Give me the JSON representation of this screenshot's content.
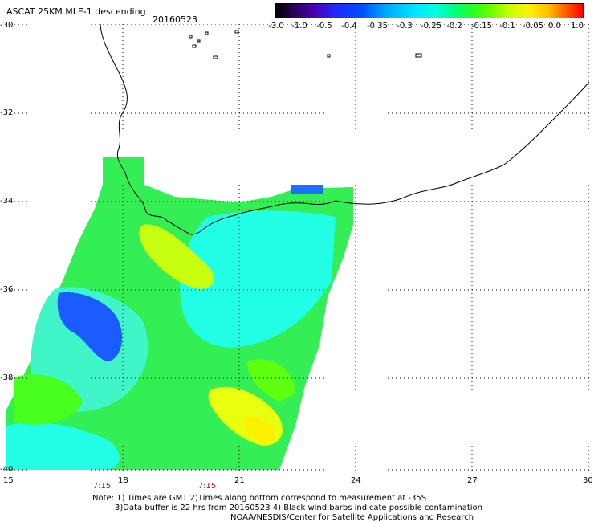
{
  "header": {
    "title": "ASCAT 25KM MLE-1 descending",
    "date": "20160523"
  },
  "colorbar": {
    "labels": [
      "-3.0",
      "-1.0",
      "-0.5",
      "-0.4",
      "-0.35",
      "-0.3",
      "-0.25",
      "-0.2",
      "-0.15",
      "-0.1",
      "-0.05",
      "0.0",
      "1.0"
    ]
  },
  "axes": {
    "lat_labels": [
      "-30",
      "-32",
      "-34",
      "-36",
      "-38",
      "-40"
    ],
    "lon_labels": [
      "15",
      "18",
      "21",
      "24",
      "27",
      "30"
    ]
  },
  "time_labels": [
    "7:15",
    "7:15"
  ],
  "notes": {
    "line1": "Note: 1) Times are GMT 2)Times along bottom correspond to measurement at -35S",
    "line2": "3)Data buffer is 22 hrs from 20160523 4) Black wind barbs indicate possible contamination",
    "line3": "NOAA/NESDIS/Center for Satellite Applications and Research"
  },
  "colors": {
    "grid": "#000000",
    "time_label": "#c00000",
    "coastline": "#000000"
  }
}
